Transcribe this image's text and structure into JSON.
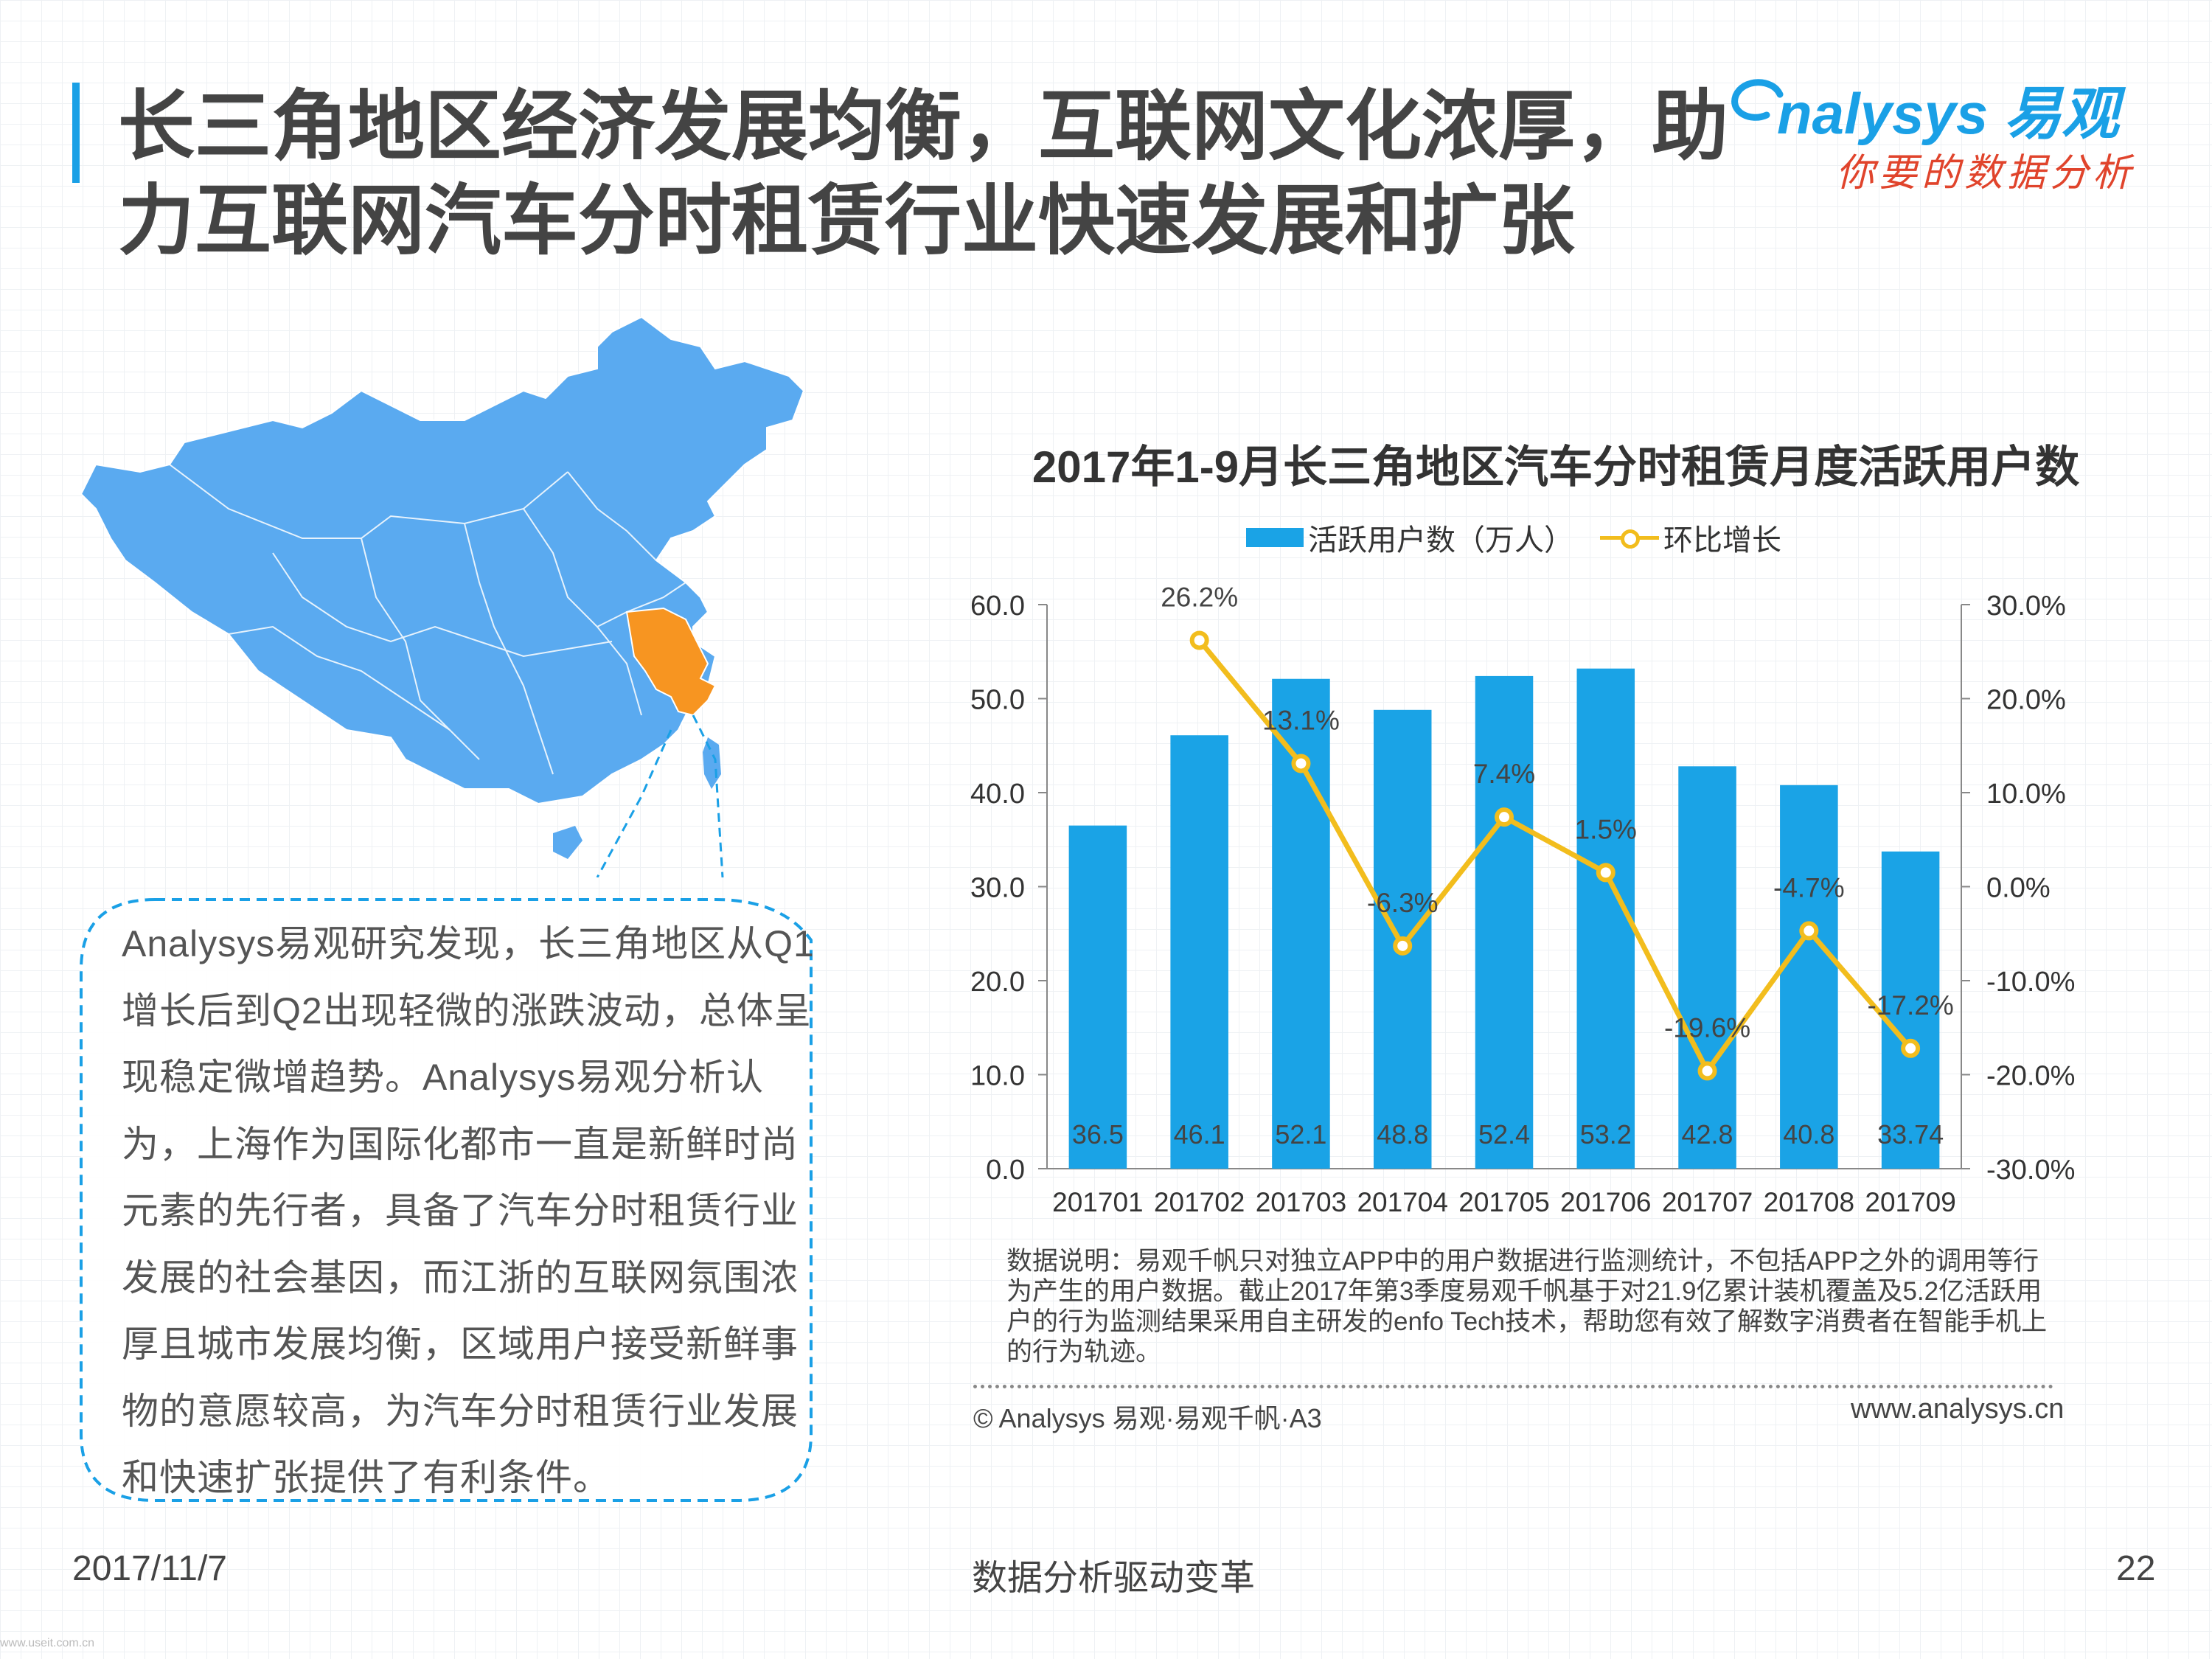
{
  "header": {
    "title": "长三角地区经济发展均衡，互联网文化浓厚，助力互联网汽车分时租赁行业快速发展和扩张",
    "logo_text": "nalysys 易观",
    "logo_tagline": "你要的数据分析"
  },
  "callout": {
    "text": "Analysys易观研究发现，长三角地区从Q1增长后到Q2出现轻微的涨跌波动，总体呈现稳定微增趋势。Analysys易观分析认为，上海作为国际化都市一直是新鲜时尚元素的先行者，具备了汽车分时租赁行业发展的社会基因，而江浙的互联网氛围浓厚且城市发展均衡，区域用户接受新鲜事物的意愿较高，为汽车分时租赁行业发展和快速扩张提供了有利条件。"
  },
  "colors": {
    "bar": "#1aa3e6",
    "line": "#f2bd1d",
    "map_blue": "#5aaaf0",
    "map_highlight": "#f79521",
    "accent": "#1aa0e6"
  },
  "chart_data": {
    "type": "bar",
    "title": "2017年1-9月长三角地区汽车分时租赁月度活跃用户数",
    "categories": [
      "201701",
      "201702",
      "201703",
      "201704",
      "201705",
      "201706",
      "201707",
      "201708",
      "201709"
    ],
    "series": [
      {
        "name": "活跃用户数（万人）",
        "type": "bar",
        "axis": "left",
        "values": [
          36.5,
          46.1,
          52.1,
          48.8,
          52.4,
          53.2,
          42.8,
          40.8,
          33.74
        ],
        "labels": [
          "36.5",
          "46.1",
          "52.1",
          "48.8",
          "52.4",
          "53.2",
          "42.8",
          "40.8",
          "33.74"
        ]
      },
      {
        "name": "环比增长",
        "type": "line",
        "axis": "right",
        "values": [
          null,
          26.2,
          13.1,
          -6.3,
          7.4,
          1.5,
          -19.6,
          -4.7,
          -17.2
        ],
        "labels": [
          "",
          "26.2%",
          "13.1%",
          "-6.3%",
          "7.4%",
          "1.5%",
          "-19.6%",
          "-4.7%",
          "-17.2%"
        ]
      }
    ],
    "ylim": [
      0,
      60
    ],
    "y_ticks": [
      "0.0",
      "10.0",
      "20.0",
      "30.0",
      "40.0",
      "50.0",
      "60.0"
    ],
    "y2lim": [
      -30,
      30
    ],
    "y2_ticks": [
      "-30.0%",
      "-20.0%",
      "-10.0%",
      "0.0%",
      "10.0%",
      "20.0%",
      "30.0%"
    ],
    "legend_position": "top-center",
    "grid": false
  },
  "footnote": {
    "note": "数据说明：易观千帆只对独立APP中的用户数据进行监测统计，不包括APP之外的调用等行为产生的用户数据。截止2017年第3季度易观千帆基于对21.9亿累计装机覆盖及5.2亿活跃用户的行为监测结果采用自主研发的enfo Tech技术，帮助您有效了解数字消费者在智能手机上的行为轨迹。",
    "copyright": "© Analysys 易观·易观千帆·A3",
    "website": "www.analysys.cn"
  },
  "footer": {
    "date": "2017/11/7",
    "slogan": "数据分析驱动变革",
    "page": "22",
    "source_url": "www.useit.com.cn"
  }
}
